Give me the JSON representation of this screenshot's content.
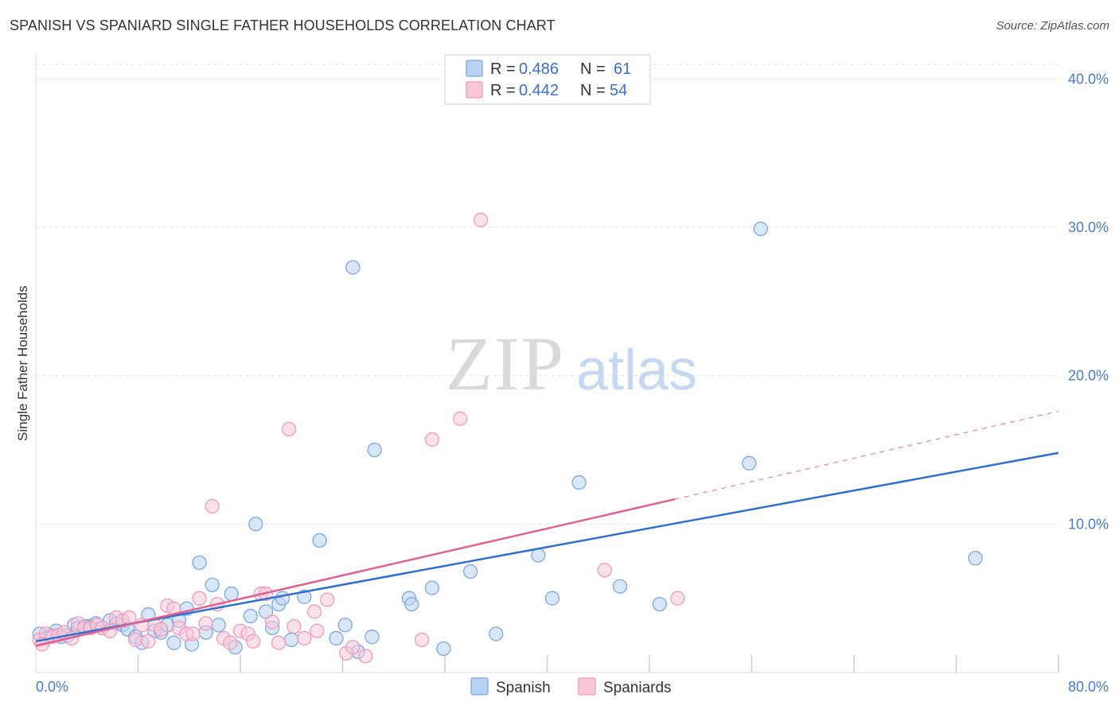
{
  "title": "SPANISH VS SPANIARD SINGLE FATHER HOUSEHOLDS CORRELATION CHART",
  "source": "Source: ZipAtlas.com",
  "watermark": {
    "zip": "ZIP",
    "atlas": "atlas"
  },
  "chart_data": {
    "type": "scatter",
    "ylabel": "Single Father Households",
    "xlim": [
      0,
      80
    ],
    "ylim": [
      0,
      42
    ],
    "x_ticks": [
      {
        "value": 0,
        "label": "0.0%"
      },
      {
        "value": 80,
        "label": "80.0%"
      }
    ],
    "y_ticks": [
      {
        "value": 10,
        "label": "10.0%"
      },
      {
        "value": 20,
        "label": "20.0%"
      },
      {
        "value": 30,
        "label": "30.0%"
      },
      {
        "value": 40,
        "label": "40.0%"
      }
    ],
    "grid": true,
    "legend_position": "top-center",
    "legend": [
      {
        "r_label": "R = ",
        "r_value": "0.486",
        "n_label": "N = ",
        "n_value": "61"
      },
      {
        "r_label": "R = ",
        "r_value": "0.442",
        "n_label": "N = ",
        "n_value": "54"
      }
    ],
    "series": [
      {
        "name": "Spanish",
        "color": "#7aa8e8",
        "fill": "#b9d2f3",
        "line_color": "#2f6fd0",
        "trend": {
          "x0": 0,
          "y0": 2.1,
          "x1": 80,
          "y1": 14.8,
          "dashed_from": null
        },
        "points": [
          [
            0.3,
            2.6
          ],
          [
            0.8,
            2.3
          ],
          [
            1.2,
            2.5
          ],
          [
            1.6,
            2.8
          ],
          [
            2.0,
            2.4
          ],
          [
            2.5,
            2.5
          ],
          [
            3.0,
            3.2
          ],
          [
            3.3,
            3.0
          ],
          [
            3.8,
            3.1
          ],
          [
            4.2,
            3.1
          ],
          [
            4.7,
            3.3
          ],
          [
            5.2,
            3.0
          ],
          [
            5.8,
            3.5
          ],
          [
            6.3,
            3.3
          ],
          [
            6.8,
            3.2
          ],
          [
            7.2,
            2.9
          ],
          [
            7.8,
            2.4
          ],
          [
            8.3,
            2.0
          ],
          [
            8.8,
            3.9
          ],
          [
            9.3,
            2.8
          ],
          [
            9.8,
            2.7
          ],
          [
            10.3,
            3.2
          ],
          [
            10.8,
            2.0
          ],
          [
            11.2,
            3.5
          ],
          [
            11.8,
            4.3
          ],
          [
            12.2,
            1.9
          ],
          [
            12.8,
            7.4
          ],
          [
            13.3,
            2.7
          ],
          [
            13.8,
            5.9
          ],
          [
            14.3,
            3.2
          ],
          [
            15.3,
            5.3
          ],
          [
            15.6,
            1.7
          ],
          [
            16.8,
            3.8
          ],
          [
            17.2,
            10.0
          ],
          [
            18.0,
            4.1
          ],
          [
            18.5,
            3.0
          ],
          [
            19.0,
            4.6
          ],
          [
            19.3,
            5.0
          ],
          [
            20.0,
            2.2
          ],
          [
            21.0,
            5.1
          ],
          [
            22.2,
            8.9
          ],
          [
            23.5,
            2.3
          ],
          [
            24.2,
            3.2
          ],
          [
            24.8,
            27.3
          ],
          [
            25.2,
            1.4
          ],
          [
            26.3,
            2.4
          ],
          [
            26.5,
            15.0
          ],
          [
            29.2,
            5.0
          ],
          [
            29.4,
            4.6
          ],
          [
            31.0,
            5.7
          ],
          [
            31.9,
            1.6
          ],
          [
            34.0,
            6.8
          ],
          [
            36.0,
            2.6
          ],
          [
            39.3,
            7.9
          ],
          [
            40.4,
            5.0
          ],
          [
            42.5,
            12.8
          ],
          [
            45.7,
            5.8
          ],
          [
            48.8,
            4.6
          ],
          [
            55.8,
            14.1
          ],
          [
            56.7,
            29.9
          ],
          [
            73.5,
            7.7
          ]
        ]
      },
      {
        "name": "Spaniards",
        "color": "#f29ab8",
        "fill": "#f8c8d8",
        "line_color": "#e0608f",
        "trend": {
          "x0": 0,
          "y0": 1.8,
          "x1": 80,
          "y1": 17.6,
          "dashed_from": 50
        },
        "points": [
          [
            0.3,
            2.2
          ],
          [
            0.8,
            2.6
          ],
          [
            1.3,
            2.4
          ],
          [
            1.8,
            2.5
          ],
          [
            2.2,
            2.7
          ],
          [
            2.8,
            2.3
          ],
          [
            3.3,
            3.3
          ],
          [
            3.8,
            3.0
          ],
          [
            4.3,
            3.0
          ],
          [
            4.8,
            3.2
          ],
          [
            5.2,
            3.0
          ],
          [
            5.8,
            2.8
          ],
          [
            6.3,
            3.7
          ],
          [
            6.8,
            3.5
          ],
          [
            7.3,
            3.7
          ],
          [
            7.8,
            2.2
          ],
          [
            8.3,
            3.2
          ],
          [
            8.8,
            2.1
          ],
          [
            9.3,
            3.2
          ],
          [
            9.8,
            2.9
          ],
          [
            10.3,
            4.5
          ],
          [
            10.8,
            4.3
          ],
          [
            11.2,
            3.0
          ],
          [
            11.8,
            2.6
          ],
          [
            12.3,
            2.6
          ],
          [
            12.8,
            5.0
          ],
          [
            13.3,
            3.3
          ],
          [
            13.8,
            11.2
          ],
          [
            14.2,
            4.6
          ],
          [
            14.7,
            2.3
          ],
          [
            15.2,
            2.0
          ],
          [
            16.0,
            2.8
          ],
          [
            16.6,
            2.6
          ],
          [
            17.0,
            2.1
          ],
          [
            17.6,
            5.3
          ],
          [
            18.0,
            5.3
          ],
          [
            18.5,
            3.4
          ],
          [
            19.0,
            2.0
          ],
          [
            19.8,
            16.4
          ],
          [
            20.2,
            3.1
          ],
          [
            21.0,
            2.3
          ],
          [
            21.8,
            4.1
          ],
          [
            22.0,
            2.8
          ],
          [
            22.8,
            4.9
          ],
          [
            24.3,
            1.3
          ],
          [
            24.8,
            1.7
          ],
          [
            25.8,
            1.1
          ],
          [
            30.2,
            2.2
          ],
          [
            31.0,
            15.7
          ],
          [
            33.2,
            17.1
          ],
          [
            34.8,
            30.5
          ],
          [
            44.5,
            6.9
          ],
          [
            50.2,
            5.0
          ],
          [
            0.5,
            1.9
          ]
        ]
      }
    ]
  }
}
